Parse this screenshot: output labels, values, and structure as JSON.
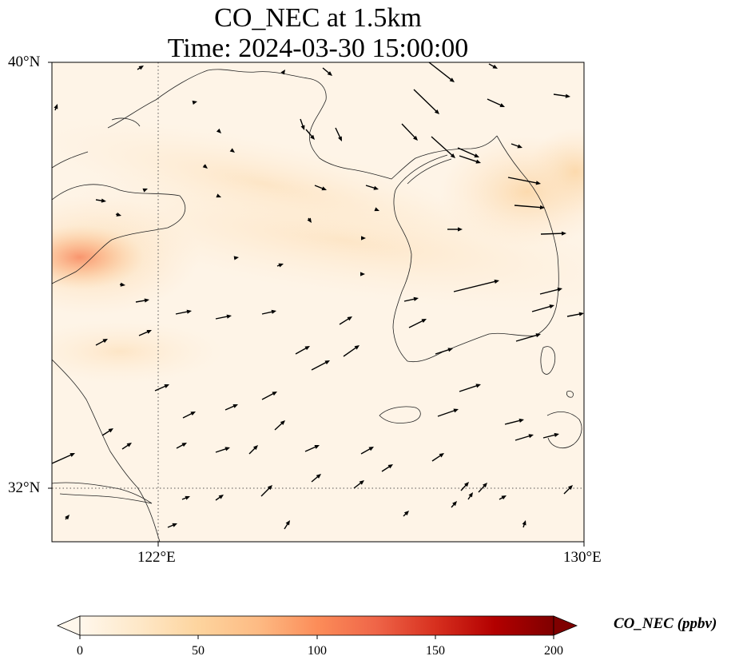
{
  "title_line1": "CO_NEC at 1.5km",
  "title_line2": "Time: 2024-03-30 15:00:00",
  "axes": {
    "lat_labels": [
      "40°N",
      "32°N"
    ],
    "lon_labels": [
      "122°E",
      "130°E"
    ],
    "lat_range": [
      31,
      40
    ],
    "lon_range": [
      120,
      130
    ],
    "gridlines": "dotted at 32°N and 122°E"
  },
  "colorbar": {
    "title": "CO_NEC (ppbv)",
    "ticks": [
      "0",
      "50",
      "100",
      "150",
      "200"
    ],
    "range": [
      0,
      200
    ],
    "colormap": "OrRd",
    "extend": "both",
    "colors": [
      "#fff7ec",
      "#fee8c8",
      "#fdd49e",
      "#fdbb84",
      "#fc8d59",
      "#ef6548",
      "#d7301f",
      "#b30000",
      "#7f0000"
    ]
  },
  "field_summary": {
    "max_region": "Shandong coast near 37°N 120°E",
    "secondary_band": "east Korea near 38°N 129.5°E"
  },
  "wind_vectors": "arrows mostly pointing east-northeast; east-southeast near the north edge"
}
